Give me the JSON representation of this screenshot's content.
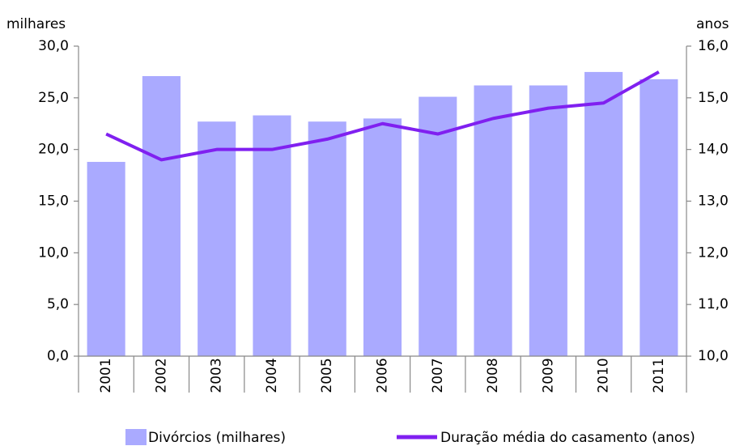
{
  "chart_data": {
    "type": "bar",
    "y_label": "milhares",
    "y2_label": "anos",
    "categories": [
      "2001",
      "2002",
      "2003",
      "2004",
      "2005",
      "2006",
      "2007",
      "2008",
      "2009",
      "2010",
      "2011"
    ],
    "series": [
      {
        "name": "Divórcios (milhares)",
        "type": "bar",
        "color": "#aaaaff",
        "values": [
          18.8,
          27.1,
          22.7,
          23.3,
          22.7,
          23.0,
          25.1,
          26.2,
          26.2,
          27.5,
          26.8
        ]
      },
      {
        "name": "Duração média do casamento  (anos)",
        "type": "line",
        "axis": "y2",
        "color": "#8020f0",
        "values": [
          14.3,
          13.8,
          14.0,
          14.0,
          14.2,
          14.5,
          14.3,
          14.6,
          14.8,
          14.9,
          15.5
        ]
      }
    ],
    "ylim": [
      0,
      30
    ],
    "yticks": [
      {
        "value": 0,
        "label": "0,0"
      },
      {
        "value": 5,
        "label": "5,0"
      },
      {
        "value": 10,
        "label": "10,0"
      },
      {
        "value": 15,
        "label": "15,0"
      },
      {
        "value": 20,
        "label": "20,0"
      },
      {
        "value": 25,
        "label": "25,0"
      },
      {
        "value": 30,
        "label": "30,0"
      }
    ],
    "y2lim": [
      10,
      16
    ],
    "y2ticks": [
      {
        "value": 10,
        "label": "10,0"
      },
      {
        "value": 11,
        "label": "11,0"
      },
      {
        "value": 12,
        "label": "12,0"
      },
      {
        "value": 13,
        "label": "13,0"
      },
      {
        "value": 14,
        "label": "14,0"
      },
      {
        "value": 15,
        "label": "15,0"
      },
      {
        "value": 16,
        "label": "16,0"
      }
    ],
    "grid": false,
    "legend": "bottom"
  }
}
